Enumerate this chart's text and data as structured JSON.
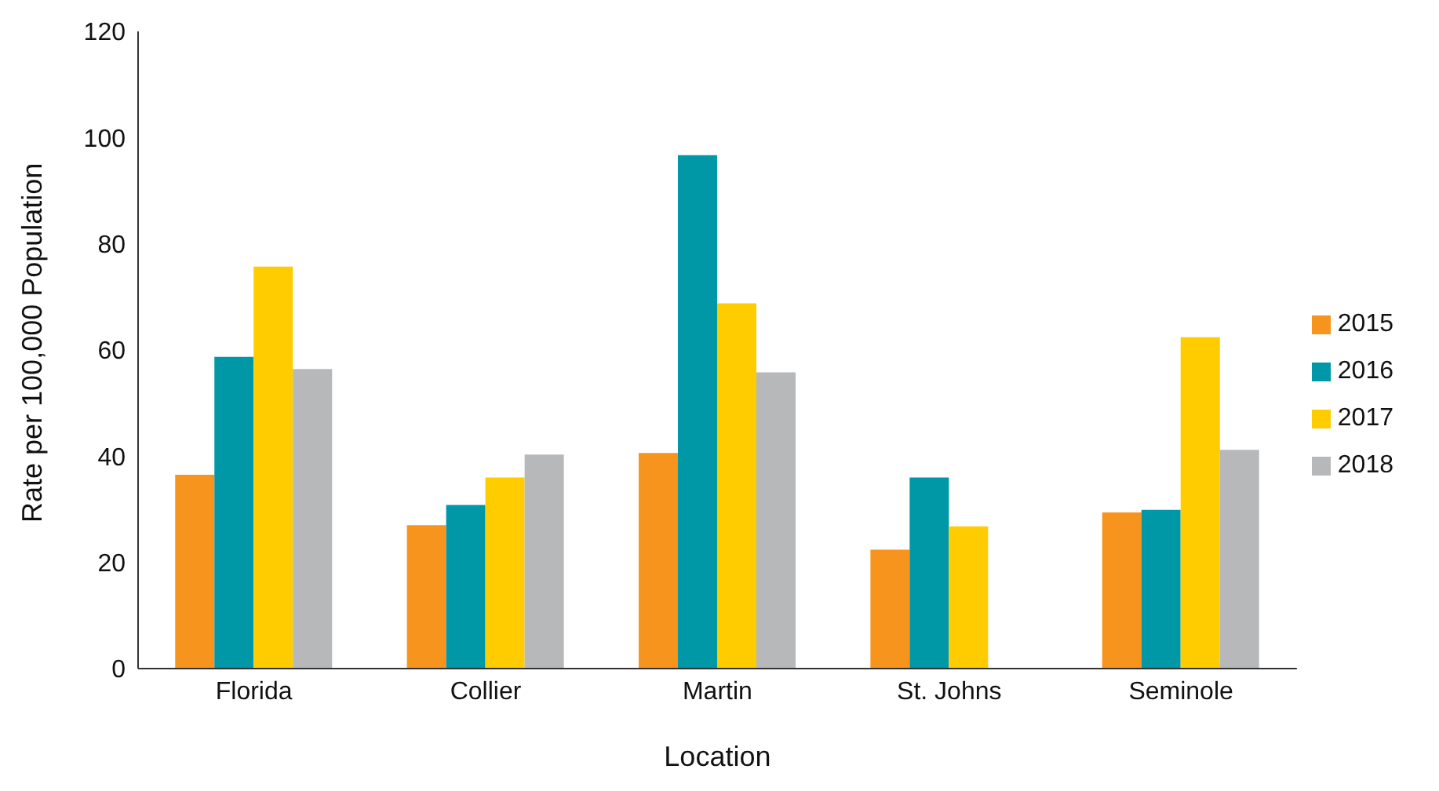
{
  "chart_data": {
    "type": "bar",
    "xlabel": "Location",
    "ylabel": "Rate per 100,000 Population",
    "categories": [
      "Florida",
      "Collier",
      "Martin",
      "St. Johns",
      "Seminole"
    ],
    "series": [
      {
        "name": "2015",
        "color": "#f7941d",
        "values": [
          36.5,
          27,
          40.6,
          22.4,
          29.4
        ]
      },
      {
        "name": "2016",
        "color": "#0097a7",
        "values": [
          58.7,
          30.8,
          96.7,
          36,
          29.9
        ]
      },
      {
        "name": "2017",
        "color": "#ffcc00",
        "values": [
          75.7,
          36,
          68.8,
          26.8,
          62.4
        ]
      },
      {
        "name": "2018",
        "color": "#b7b8ba",
        "values": [
          56.4,
          40.3,
          55.8,
          null,
          41.2
        ]
      }
    ],
    "ylim": [
      0,
      120
    ],
    "yticks": [
      0,
      20,
      40,
      60,
      80,
      100,
      120
    ],
    "grid": false,
    "legend": "right"
  }
}
